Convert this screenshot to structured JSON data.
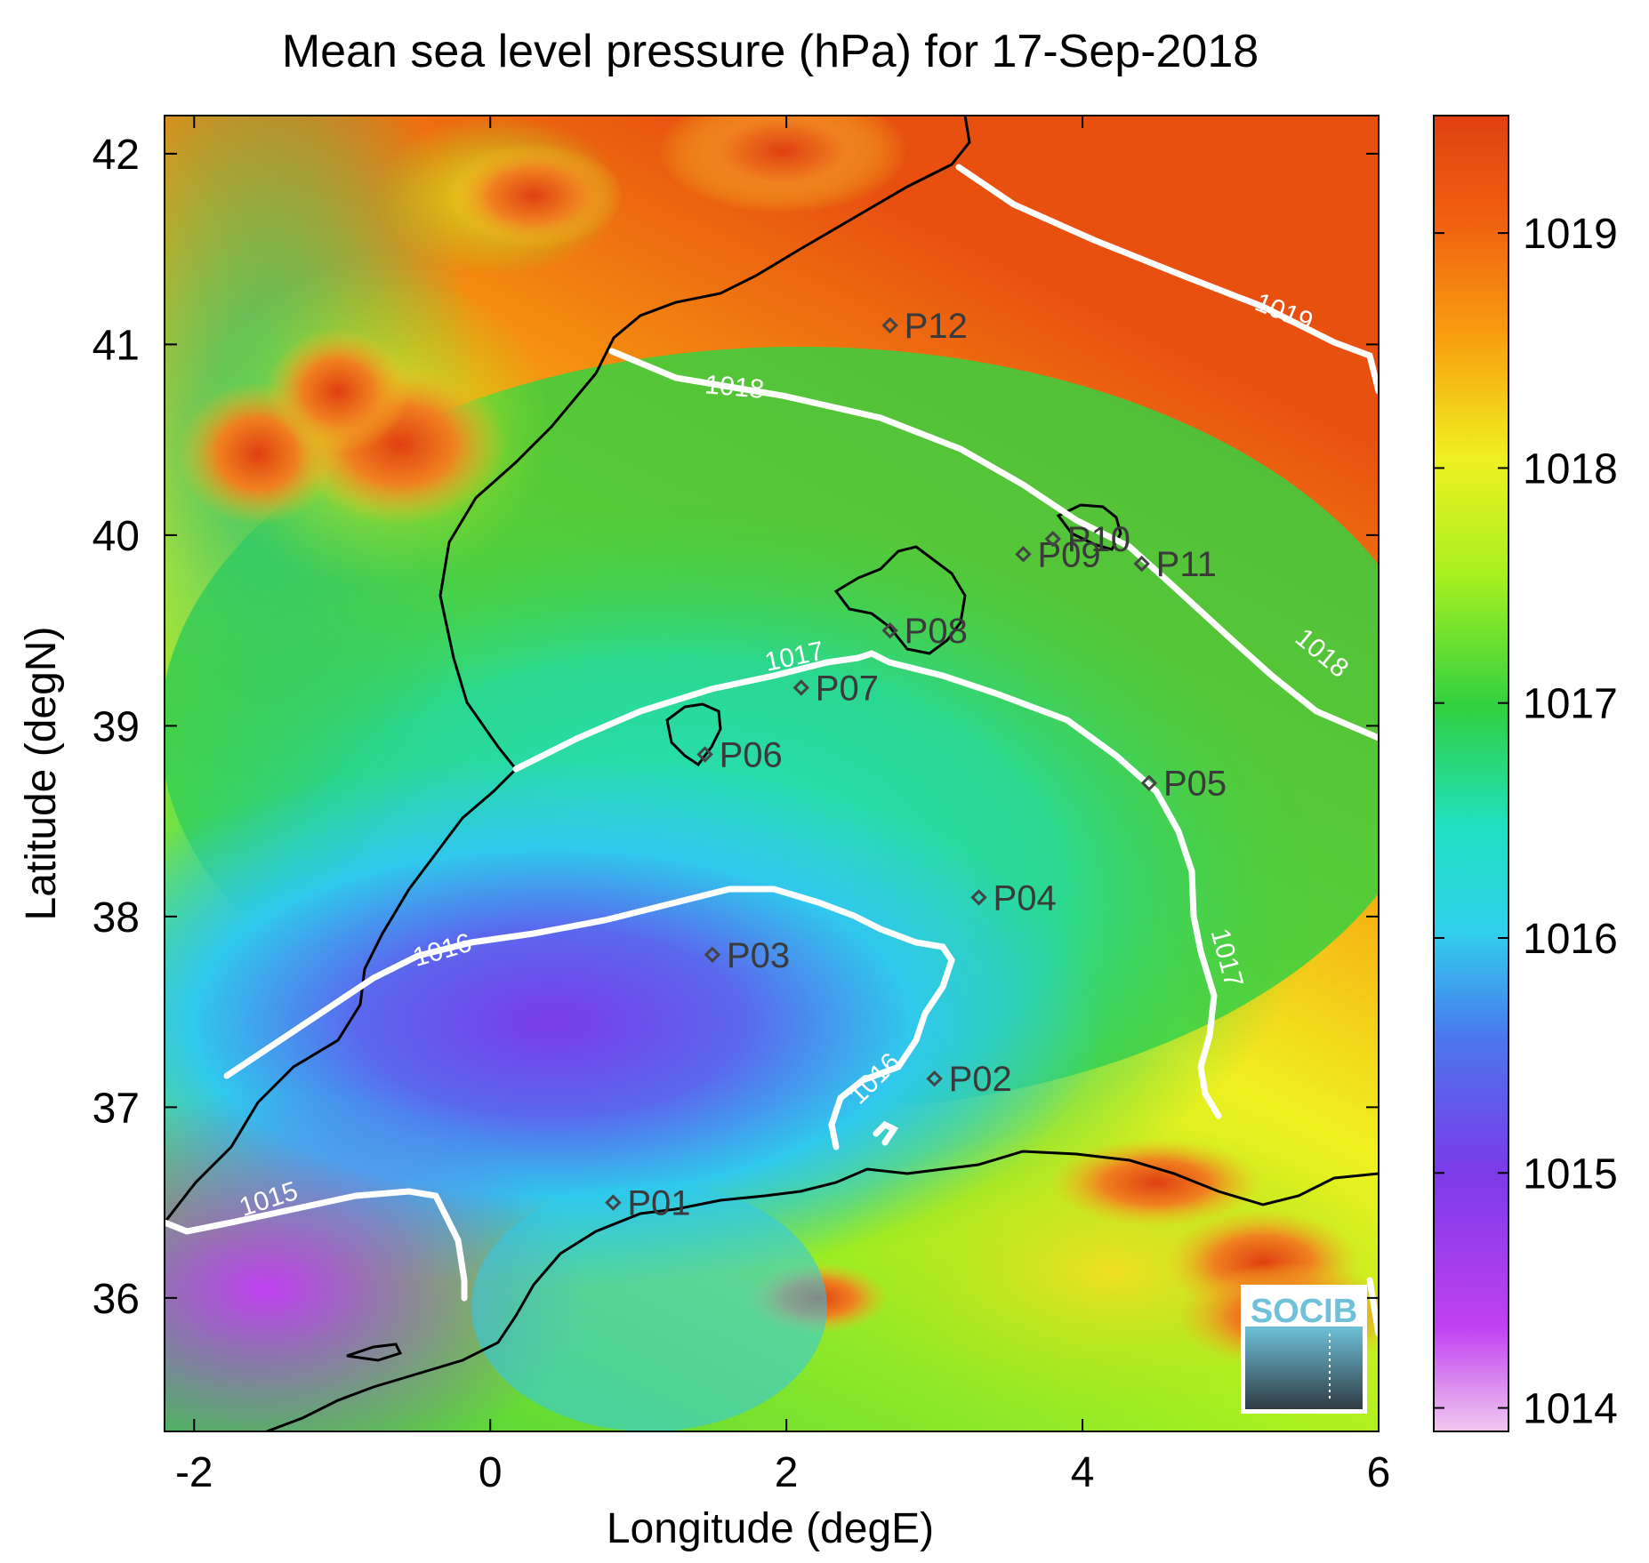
{
  "chart_data": {
    "type": "heatmap",
    "title": "Mean sea level pressure (hPa) for 17-Sep-2018",
    "xlabel": "Longitude (degE)",
    "ylabel": "Latitude (degN)",
    "xlim": [
      -2.2,
      6
    ],
    "ylim": [
      35.3,
      42.2
    ],
    "xticks": [
      "-2",
      "0",
      "2",
      "4",
      "6"
    ],
    "xtick_values": [
      -2,
      0,
      2,
      4,
      6
    ],
    "yticks": [
      "36",
      "37",
      "38",
      "39",
      "40",
      "41",
      "42"
    ],
    "ytick_values": [
      36,
      37,
      38,
      39,
      40,
      41,
      42
    ],
    "colorbar": {
      "range": [
        1013.9,
        1019.5
      ],
      "ticks": [
        "1014",
        "1015",
        "1016",
        "1017",
        "1018",
        "1019"
      ],
      "tick_values": [
        1014,
        1015,
        1016,
        1017,
        1018,
        1019
      ],
      "colormap": [
        "#f0c8f0",
        "#c040f0",
        "#7a3be8",
        "#4a78ee",
        "#30d0ec",
        "#20e0c0",
        "#30d040",
        "#a6f020",
        "#f0f020",
        "#f8a010",
        "#f06010",
        "#e04010"
      ]
    },
    "contour_labels": [
      {
        "text": "1015",
        "lon": -1.2,
        "lat": 36.22
      },
      {
        "text": "1016",
        "lon": -0.65,
        "lat": 37.55
      },
      {
        "text": "1016",
        "lon": 2.75,
        "lat": 36.95
      },
      {
        "text": "1017",
        "lon": 2.1,
        "lat": 39.3
      },
      {
        "text": "1017",
        "lon": 4.95,
        "lat": 37.55
      },
      {
        "text": "1018",
        "lon": 1.7,
        "lat": 40.75
      },
      {
        "text": "1018",
        "lon": 5.4,
        "lat": 39.3
      },
      {
        "text": "1019",
        "lon": 5.35,
        "lat": 41.05
      }
    ],
    "stations": [
      {
        "name": "P01",
        "lon": 0.83,
        "lat": 36.5
      },
      {
        "name": "P02",
        "lon": 3.0,
        "lat": 37.15
      },
      {
        "name": "P03",
        "lon": 1.5,
        "lat": 37.8
      },
      {
        "name": "P04",
        "lon": 3.3,
        "lat": 38.1
      },
      {
        "name": "P05",
        "lon": 4.45,
        "lat": 38.7
      },
      {
        "name": "P06",
        "lon": 1.45,
        "lat": 38.85
      },
      {
        "name": "P07",
        "lon": 2.1,
        "lat": 39.2
      },
      {
        "name": "P08",
        "lon": 2.7,
        "lat": 39.5
      },
      {
        "name": "P09",
        "lon": 3.6,
        "lat": 39.9
      },
      {
        "name": "P10",
        "lon": 3.8,
        "lat": 39.98
      },
      {
        "name": "P11",
        "lon": 4.4,
        "lat": 39.85
      },
      {
        "name": "P12",
        "lon": 2.7,
        "lat": 41.1
      }
    ]
  },
  "logo": {
    "text": "SOCIB"
  }
}
